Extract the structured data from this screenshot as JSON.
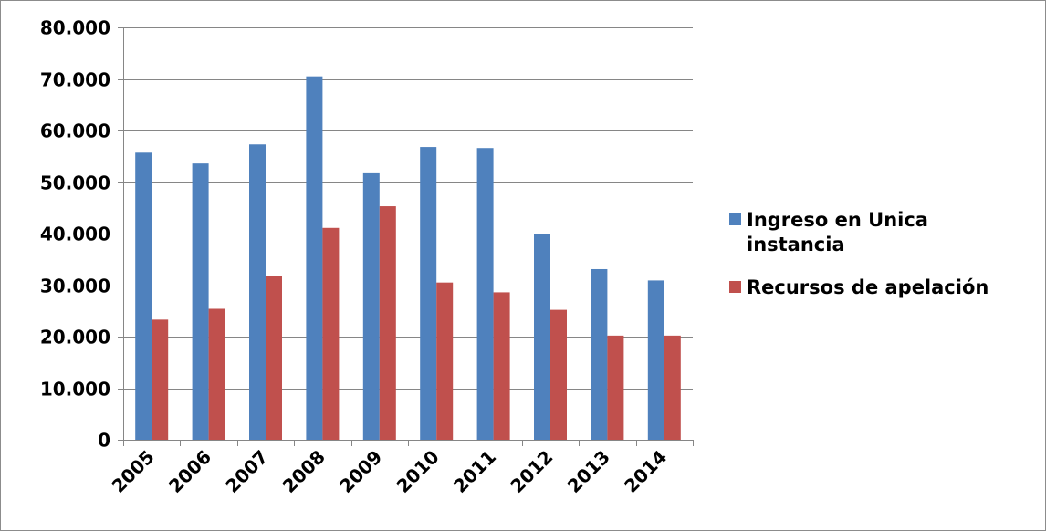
{
  "chart_data": {
    "type": "bar",
    "title": "",
    "xlabel": "",
    "ylabel": "",
    "categories": [
      "2005",
      "2006",
      "2007",
      "2008",
      "2009",
      "2010",
      "2011",
      "2012",
      "2013",
      "2014"
    ],
    "series": [
      {
        "name": "Ingreso en Unica instancia",
        "name_lines": [
          "Ingreso en Unica",
          "instancia"
        ],
        "color": "#4F81BD",
        "values": [
          55700,
          53600,
          57300,
          70500,
          51700,
          56800,
          56600,
          40000,
          33100,
          30900
        ]
      },
      {
        "name": "Recursos de apelación",
        "name_lines": [
          "Recursos de apelación"
        ],
        "color": "#C0504D",
        "values": [
          23300,
          25400,
          31800,
          41100,
          45300,
          30500,
          28600,
          25200,
          20200,
          20200
        ]
      }
    ],
    "ylim": [
      0,
      80000
    ],
    "yticks": [
      0,
      10000,
      20000,
      30000,
      40000,
      50000,
      60000,
      70000,
      80000
    ],
    "ytick_labels": [
      "0",
      "10.000",
      "20.000",
      "30.000",
      "40.000",
      "50.000",
      "60.000",
      "70.000",
      "80.000"
    ],
    "grid": true,
    "gridline_color": "#868686",
    "legend_position": "right"
  }
}
